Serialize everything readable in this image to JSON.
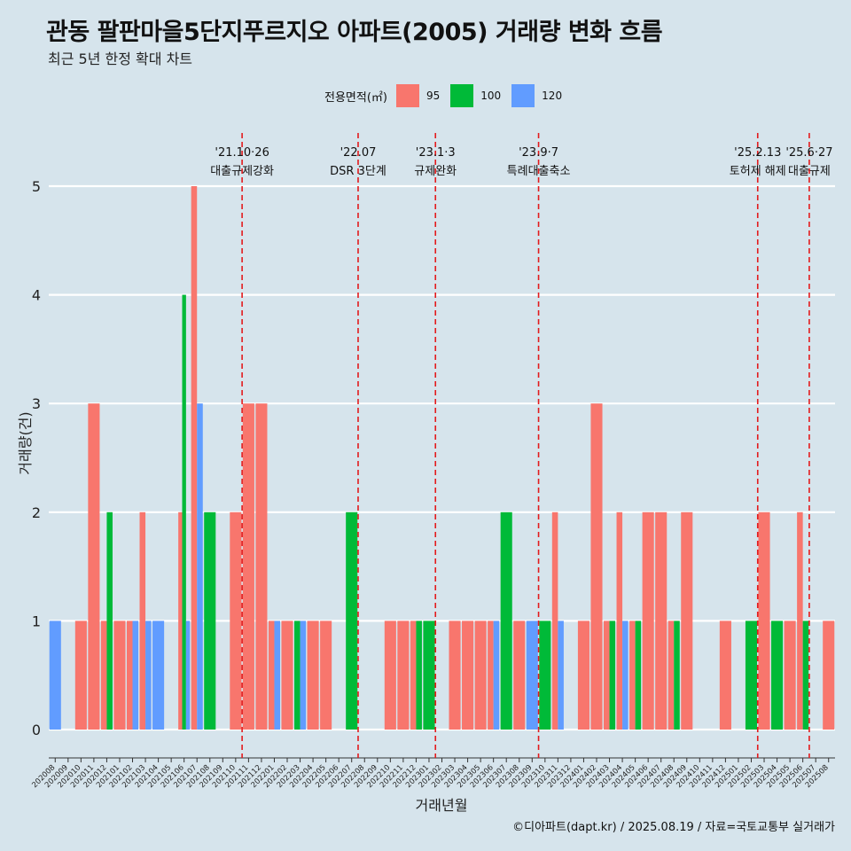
{
  "chart_data": {
    "type": "bar",
    "title": "관동 팔판마을5단지푸르지오 아파트(2005) 거래량 변화 흐름",
    "subtitle": "최근 5년 한정 확대 차트",
    "xlabel": "거래년월",
    "ylabel": "거래량(건)",
    "legend_title": "전용면적(㎡)",
    "legend_position": "top",
    "caption": "©디아파트(dapt.kr) / 2025.08.19 / 자료=국토교통부 실거래가",
    "ylim": [
      0,
      5
    ],
    "yticks": [
      0,
      1,
      2,
      3,
      4,
      5
    ],
    "grid": true,
    "categories": [
      "202008",
      "202009",
      "202010",
      "202011",
      "202012",
      "202101",
      "202102",
      "202103",
      "202104",
      "202105",
      "202106",
      "202107",
      "202108",
      "202109",
      "202110",
      "202111",
      "202112",
      "202201",
      "202202",
      "202203",
      "202204",
      "202205",
      "202206",
      "202207",
      "202208",
      "202209",
      "202210",
      "202211",
      "202212",
      "202301",
      "202302",
      "202303",
      "202304",
      "202305",
      "202306",
      "202307",
      "202308",
      "202309",
      "202310",
      "202311",
      "202312",
      "202401",
      "202402",
      "202403",
      "202404",
      "202405",
      "202406",
      "202407",
      "202408",
      "202409",
      "202410",
      "202411",
      "202412",
      "202501",
      "202502",
      "202503",
      "202504",
      "202505",
      "202506",
      "202507",
      "202508"
    ],
    "series": [
      {
        "name": "95",
        "color": "#f8766d",
        "values": [
          0,
          0,
          1,
          3,
          1,
          1,
          1,
          2,
          0,
          0,
          2,
          5,
          0,
          0,
          2,
          3,
          3,
          1,
          1,
          0,
          1,
          1,
          0,
          0,
          0,
          0,
          1,
          1,
          1,
          0,
          0,
          1,
          1,
          1,
          1,
          0,
          1,
          0,
          0,
          2,
          0,
          1,
          3,
          1,
          2,
          1,
          2,
          2,
          1,
          2,
          0,
          0,
          1,
          0,
          0,
          2,
          0,
          1,
          2,
          0,
          1
        ]
      },
      {
        "name": "100",
        "color": "#00ba38",
        "values": [
          0,
          0,
          0,
          0,
          2,
          0,
          0,
          0,
          0,
          0,
          4,
          0,
          2,
          0,
          0,
          0,
          0,
          0,
          0,
          1,
          0,
          0,
          0,
          2,
          0,
          0,
          0,
          0,
          1,
          1,
          0,
          0,
          0,
          0,
          0,
          2,
          0,
          0,
          1,
          0,
          0,
          0,
          0,
          1,
          0,
          1,
          0,
          0,
          1,
          0,
          0,
          0,
          0,
          0,
          1,
          0,
          1,
          0,
          1,
          0,
          0
        ]
      },
      {
        "name": "120",
        "color": "#619cff",
        "values": [
          1,
          0,
          0,
          0,
          0,
          0,
          1,
          1,
          1,
          0,
          1,
          3,
          0,
          0,
          0,
          0,
          0,
          1,
          0,
          1,
          0,
          0,
          0,
          0,
          0,
          0,
          0,
          0,
          0,
          0,
          0,
          0,
          0,
          0,
          1,
          0,
          0,
          1,
          0,
          1,
          0,
          0,
          0,
          0,
          1,
          0,
          0,
          0,
          0,
          0,
          0,
          0,
          0,
          0,
          0,
          0,
          0,
          0,
          0,
          0,
          0
        ]
      }
    ],
    "events": [
      {
        "date": "'21.10·26",
        "label": "대출규제강화",
        "after": "202110"
      },
      {
        "date": "'22.07",
        "label": "DSR 3단계",
        "after": "202207"
      },
      {
        "date": "'23.1·3",
        "label": "규제완화",
        "after": "202301"
      },
      {
        "date": "'23.9·7",
        "label": "특례대출축소",
        "after": "202309"
      },
      {
        "date": "'25.2.13",
        "label": "토허제 해제",
        "after": "202502"
      },
      {
        "date": "'25.6·27",
        "label": "대출규제",
        "after": "202506"
      }
    ]
  }
}
